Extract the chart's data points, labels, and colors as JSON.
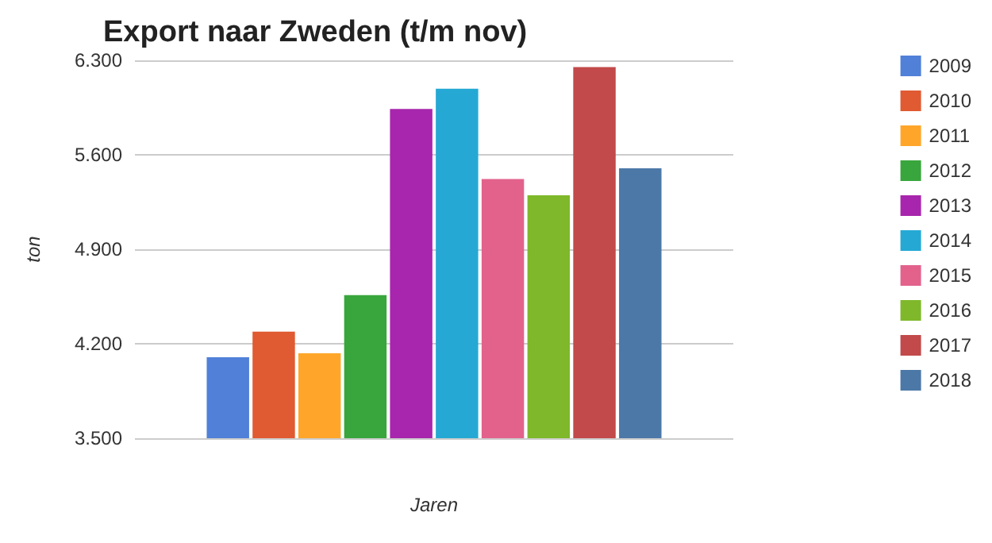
{
  "chart_data": {
    "type": "bar",
    "title": "Export naar Zweden (t/m nov)",
    "xlabel": "Jaren",
    "ylabel": "ton",
    "categories": [
      null
    ],
    "series": [
      {
        "name": "2009",
        "color": "#5080d8",
        "values": [
          4100
        ]
      },
      {
        "name": "2010",
        "color": "#e05a32",
        "values": [
          4290
        ]
      },
      {
        "name": "2011",
        "color": "#ffa62a",
        "values": [
          4130
        ]
      },
      {
        "name": "2012",
        "color": "#38a63c",
        "values": [
          4560
        ]
      },
      {
        "name": "2013",
        "color": "#a726ad",
        "values": [
          5940
        ]
      },
      {
        "name": "2014",
        "color": "#25a9d4",
        "values": [
          6090
        ]
      },
      {
        "name": "2015",
        "color": "#e2628c",
        "values": [
          5420
        ]
      },
      {
        "name": "2016",
        "color": "#7fb82a",
        "values": [
          5300
        ]
      },
      {
        "name": "2017",
        "color": "#c24a4a",
        "values": [
          6250
        ]
      },
      {
        "name": "2018",
        "color": "#4c78a8",
        "values": [
          5500
        ]
      }
    ],
    "ylim": [
      3500,
      6300
    ],
    "yticks": [
      {
        "value": 3500,
        "label": "3.500"
      },
      {
        "value": 4200,
        "label": "4.200"
      },
      {
        "value": 4900,
        "label": "4.900"
      },
      {
        "value": 5600,
        "label": "5.600"
      },
      {
        "value": 6300,
        "label": "6.300"
      }
    ],
    "grid": "y",
    "legend": "right"
  }
}
